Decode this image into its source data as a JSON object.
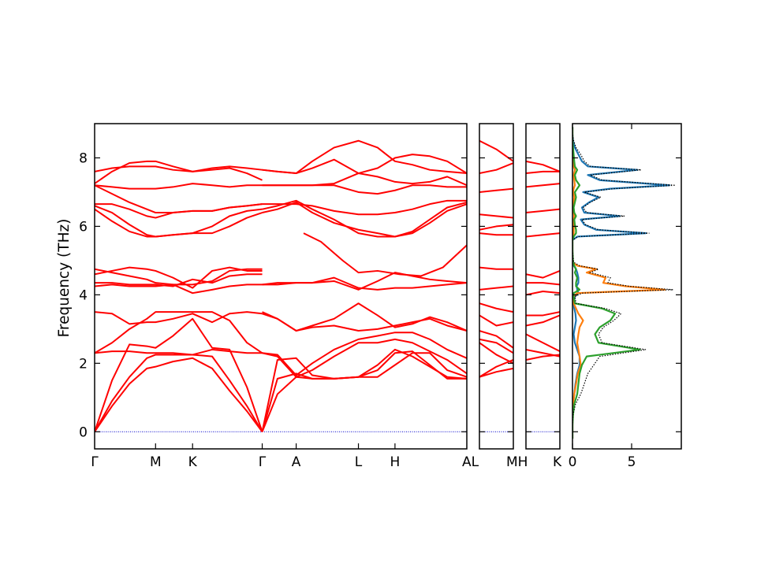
{
  "chart_data": {
    "type": "line",
    "ylabel": "Frequency (THz)",
    "ylim": [
      -0.5,
      9.0
    ],
    "y_ticks": [
      0,
      2,
      4,
      6,
      8
    ],
    "colors": {
      "bands": "#ff0000",
      "zero_line": "#0000cc",
      "dos_total": "#000000",
      "dos_1": "#1f77b4",
      "dos_2": "#ff7f0e",
      "dos_3": "#2ca02c"
    },
    "band_panels": [
      {
        "xlim": [
          0,
          8.55
        ],
        "labels": [
          {
            "text": "Γ",
            "x": 0
          },
          {
            "text": "M",
            "x": 1.4
          },
          {
            "text": "K",
            "x": 2.25
          },
          {
            "text": "Γ",
            "x": 3.85
          },
          {
            "text": "A",
            "x": 4.63
          },
          {
            "text": "L",
            "x": 6.06
          },
          {
            "text": "H",
            "x": 6.9
          },
          {
            "text": "A",
            "x": 8.55
          }
        ],
        "label_suffix": "L",
        "branches": [
          {
            "x": [
              0,
              0.4,
              0.8,
              1.2,
              1.4,
              1.8,
              2.25,
              2.7,
              3.1,
              3.5,
              3.85
            ],
            "bands": [
              [
                0.0,
                0.75,
                1.4,
                1.85,
                1.9,
                2.05,
                2.15,
                1.85,
                1.2,
                0.6,
                0.0
              ],
              [
                0.0,
                0.9,
                1.6,
                2.15,
                2.25,
                2.25,
                2.25,
                2.2,
                1.5,
                0.75,
                0.0
              ],
              [
                0.0,
                1.5,
                2.55,
                2.5,
                2.45,
                2.8,
                3.3,
                2.45,
                2.4,
                1.3,
                0.0
              ],
              [
                2.3,
                2.35,
                2.35,
                2.3,
                2.3,
                2.3,
                2.25,
                2.4,
                2.35,
                2.3,
                2.3
              ],
              [
                2.3,
                2.6,
                3.0,
                3.3,
                3.5,
                3.5,
                3.5,
                3.5,
                3.25,
                2.6,
                2.3
              ],
              [
                3.5,
                3.45,
                3.15,
                3.2,
                3.2,
                3.3,
                3.45,
                3.2,
                3.45,
                3.5,
                3.45
              ],
              [
                4.25,
                4.3,
                4.25,
                4.25,
                4.25,
                4.3,
                4.05,
                4.15,
                4.25,
                4.3,
                4.3
              ],
              [
                4.35,
                4.35,
                4.3,
                4.3,
                4.3,
                4.25,
                4.45,
                4.35,
                4.55,
                4.6,
                4.6
              ],
              [
                4.6,
                4.7,
                4.8,
                4.75,
                4.7,
                4.5,
                4.2,
                4.7,
                4.8,
                4.7,
                4.7
              ],
              [
                4.75,
                4.65,
                4.55,
                4.45,
                4.35,
                4.3,
                4.3,
                4.4,
                4.7,
                4.75,
                4.75
              ],
              [
                6.5,
                6.15,
                5.85,
                5.7,
                5.7,
                5.75,
                5.8,
                5.8,
                6.0,
                6.25,
                6.4
              ],
              [
                6.6,
                6.4,
                6.05,
                5.75,
                5.7,
                5.75,
                5.8,
                6.0,
                6.3,
                6.45,
                6.5
              ],
              [
                6.65,
                6.65,
                6.5,
                6.3,
                6.25,
                6.4,
                6.45,
                6.45,
                6.55,
                6.6,
                6.65
              ],
              [
                7.2,
                6.95,
                6.7,
                6.5,
                6.4,
                6.4,
                6.45,
                6.45,
                6.55,
                6.6,
                6.65
              ],
              [
                7.2,
                7.15,
                7.1,
                7.1,
                7.1,
                7.15,
                7.25,
                7.2,
                7.15,
                7.2,
                7.2
              ],
              [
                7.25,
                7.6,
                7.85,
                7.9,
                7.9,
                7.75,
                7.6,
                7.65,
                7.7,
                7.55,
                7.35
              ],
              [
                7.6,
                7.7,
                7.75,
                7.75,
                7.75,
                7.65,
                7.6,
                7.7,
                7.75,
                7.7,
                7.65
              ]
            ]
          },
          {
            "x": [
              3.85,
              4.2,
              4.63,
              5.0,
              5.5,
              6.06,
              6.5,
              6.9,
              7.3,
              7.7,
              8.1,
              8.55
            ],
            "bands": [
              [
                0.0,
                1.1,
                1.6,
                1.55,
                1.55,
                1.6,
                1.95,
                2.4,
                2.2,
                1.9,
                1.6,
                1.55
              ],
              [
                0.0,
                1.55,
                1.7,
                1.55,
                1.55,
                1.6,
                1.8,
                2.3,
                2.35,
                1.95,
                1.55,
                1.55
              ],
              [
                0.0,
                2.1,
                2.15,
                1.65,
                1.55,
                1.6,
                1.6,
                1.95,
                2.3,
                2.3,
                1.8,
                1.6
              ],
              [
                2.3,
                2.2,
                1.6,
                1.8,
                2.2,
                2.6,
                2.6,
                2.7,
                2.6,
                2.35,
                2.1,
                1.7
              ],
              [
                2.3,
                2.25,
                1.65,
                2.0,
                2.4,
                2.7,
                2.8,
                2.9,
                2.9,
                2.7,
                2.4,
                2.15
              ],
              [
                3.5,
                3.3,
                2.95,
                3.1,
                3.3,
                3.75,
                3.4,
                3.05,
                3.15,
                3.35,
                3.2,
                2.95
              ],
              [
                3.45,
                3.3,
                2.95,
                3.05,
                3.1,
                2.95,
                3.0,
                3.1,
                3.2,
                3.3,
                3.1,
                2.95
              ],
              [
                4.3,
                4.3,
                4.35,
                4.35,
                4.4,
                4.15,
                4.4,
                4.65,
                4.55,
                4.45,
                4.4,
                4.35
              ],
              [
                4.3,
                4.35,
                4.35,
                4.35,
                4.5,
                4.2,
                4.15,
                4.2,
                4.2,
                4.25,
                4.3,
                4.35
              ],
              [
                6.4,
                6.5,
                6.7,
                6.4,
                6.1,
                5.9,
                5.8,
                5.7,
                5.8,
                6.1,
                6.45,
                6.65
              ],
              [
                6.5,
                6.6,
                6.75,
                6.5,
                6.2,
                5.8,
                5.7,
                5.7,
                5.85,
                6.2,
                6.55,
                6.7
              ],
              [
                6.65,
                6.65,
                6.65,
                6.6,
                6.45,
                6.35,
                6.35,
                6.4,
                6.5,
                6.65,
                6.75,
                6.75
              ],
              [
                7.2,
                7.2,
                7.2,
                7.2,
                7.2,
                7.0,
                6.95,
                7.05,
                7.2,
                7.2,
                7.15,
                7.15
              ],
              [
                7.2,
                7.2,
                7.2,
                7.2,
                7.25,
                7.55,
                7.45,
                7.3,
                7.25,
                7.3,
                7.45,
                7.2
              ],
              [
                7.65,
                7.6,
                7.55,
                7.7,
                7.95,
                7.55,
                7.7,
                8.0,
                8.1,
                8.05,
                7.9,
                7.55
              ],
              [
                7.65,
                7.6,
                7.55,
                7.9,
                8.3,
                8.5,
                8.3,
                7.9,
                7.8,
                7.65,
                7.6,
                7.55
              ]
            ]
          },
          {
            "x": [
              4.8,
              5.2,
              5.7,
              6.06,
              6.5,
              7.0,
              7.5,
              8.0,
              8.55
            ],
            "bands": [
              [
                5.8,
                5.55,
                5.0,
                4.65,
                4.7,
                4.6,
                4.55,
                4.8,
                5.45
              ]
            ]
          }
        ]
      },
      {
        "xlim": [
          0,
          1
        ],
        "labels": [
          {
            "text": "M",
            "x": 1
          }
        ],
        "label_suffix": "H",
        "branches": [
          {
            "x": [
              0,
              0.5,
              1
            ],
            "bands": [
              [
                1.6,
                1.75,
                1.85
              ],
              [
                1.6,
                1.9,
                2.1
              ],
              [
                2.6,
                2.25,
                2.0
              ],
              [
                2.7,
                2.6,
                2.3
              ],
              [
                2.95,
                2.8,
                2.45
              ],
              [
                3.4,
                3.1,
                3.2
              ],
              [
                3.75,
                3.6,
                3.5
              ],
              [
                4.15,
                4.2,
                4.25
              ],
              [
                4.8,
                4.75,
                4.75
              ],
              [
                5.8,
                5.75,
                5.75
              ],
              [
                5.9,
                6.0,
                6.05
              ],
              [
                6.35,
                6.3,
                6.25
              ],
              [
                7.0,
                7.05,
                7.1
              ],
              [
                7.55,
                7.65,
                7.85
              ],
              [
                8.5,
                8.25,
                7.9
              ]
            ]
          }
        ]
      },
      {
        "xlim": [
          0,
          1
        ],
        "labels": [
          {
            "text": "K",
            "x": 1
          }
        ],
        "label_suffix": "",
        "branches": [
          {
            "x": [
              0,
              0.5,
              1
            ],
            "bands": [
              [
                2.1,
                2.2,
                2.25
              ],
              [
                2.4,
                2.3,
                2.2
              ],
              [
                2.85,
                2.6,
                2.35
              ],
              [
                3.1,
                3.2,
                3.4
              ],
              [
                3.4,
                3.4,
                3.5
              ],
              [
                4.0,
                4.1,
                4.05
              ],
              [
                4.35,
                4.35,
                4.3
              ],
              [
                4.6,
                4.5,
                4.7
              ],
              [
                5.7,
                5.75,
                5.8
              ],
              [
                6.4,
                6.45,
                6.5
              ],
              [
                7.15,
                7.2,
                7.25
              ],
              [
                7.55,
                7.6,
                7.6
              ],
              [
                7.9,
                7.8,
                7.6
              ]
            ]
          }
        ]
      }
    ],
    "dos_panel": {
      "xlim": [
        0,
        9.2
      ],
      "x_ticks": [
        0,
        5
      ],
      "freq": [
        -0.2,
        0.2,
        0.5,
        0.8,
        1.1,
        1.4,
        1.7,
        1.95,
        2.2,
        2.4,
        2.6,
        2.85,
        3.05,
        3.25,
        3.45,
        3.6,
        3.75,
        3.95,
        4.05,
        4.15,
        4.25,
        4.35,
        4.5,
        4.65,
        4.75,
        4.85,
        4.95,
        5.3,
        5.6,
        5.7,
        5.8,
        5.9,
        6.05,
        6.2,
        6.3,
        6.4,
        6.55,
        6.7,
        6.85,
        7.0,
        7.1,
        7.2,
        7.35,
        7.5,
        7.65,
        7.75,
        7.9,
        8.1,
        8.3,
        8.5,
        8.7,
        8.9
      ],
      "total": [
        0,
        0,
        0.05,
        0.25,
        0.7,
        1.0,
        1.3,
        1.8,
        2.3,
        6.2,
        2.5,
        2.2,
        2.6,
        3.5,
        4.1,
        2.8,
        0.3,
        0.2,
        0.8,
        8.5,
        4.8,
        3.0,
        3.2,
        1.5,
        2.2,
        0.6,
        0.1,
        0,
        0,
        0.5,
        6.5,
        2.2,
        1.1,
        0.8,
        4.4,
        1.2,
        0.9,
        1.5,
        2.4,
        1.0,
        3.5,
        8.7,
        2.5,
        1.5,
        5.8,
        1.5,
        1.0,
        0.7,
        0.3,
        0.1,
        0,
        0
      ],
      "series": [
        {
          "name": "",
          "color": "#1f77b4",
          "values": [
            0,
            0,
            0,
            0.05,
            0.15,
            0.25,
            0.4,
            0.6,
            0.6,
            0.4,
            0.2,
            0.1,
            0.2,
            0.3,
            0.25,
            0.15,
            0.1,
            0.2,
            0.5,
            0.4,
            0.35,
            0.5,
            0.5,
            0.4,
            0.3,
            0.1,
            0,
            0,
            0,
            0.4,
            6.2,
            2.0,
            1.0,
            0.7,
            4.0,
            1.0,
            0.8,
            1.4,
            2.2,
            0.9,
            3.2,
            8.2,
            2.3,
            1.3,
            5.5,
            1.3,
            0.8,
            0.5,
            0.2,
            0.05,
            0,
            0
          ]
        },
        {
          "name": "",
          "color": "#ff7f0e",
          "values": [
            0,
            0,
            0,
            0.05,
            0.15,
            0.3,
            0.45,
            0.7,
            0.6,
            0.5,
            0.4,
            0.5,
            0.6,
            0.9,
            0.5,
            0.3,
            0.1,
            0.1,
            0.4,
            7.8,
            4.5,
            2.6,
            2.8,
            1.2,
            2.0,
            0.4,
            0,
            0,
            0,
            0.05,
            0.1,
            0.1,
            0.1,
            0.1,
            0.15,
            0.1,
            0.05,
            0.1,
            0.15,
            0.05,
            0.1,
            0.2,
            0.15,
            0.1,
            0.2,
            0.1,
            0.05,
            0,
            0,
            0,
            0,
            0
          ]
        },
        {
          "name": "",
          "color": "#2ca02c",
          "values": [
            0,
            0,
            0.05,
            0.15,
            0.4,
            0.5,
            0.6,
            0.8,
            1.2,
            5.7,
            2.2,
            1.9,
            2.3,
            3.2,
            3.6,
            2.5,
            0.2,
            0.1,
            0.1,
            0.6,
            0.3,
            0.3,
            0.4,
            0.2,
            0.3,
            0.15,
            0.05,
            0,
            0,
            0.1,
            0.3,
            0.3,
            0.2,
            0.15,
            0.3,
            0.15,
            0.1,
            0.2,
            0.3,
            0.2,
            0.4,
            0.6,
            0.3,
            0.2,
            0.4,
            0.2,
            0.15,
            0.1,
            0.05,
            0,
            0,
            0
          ]
        }
      ]
    }
  }
}
